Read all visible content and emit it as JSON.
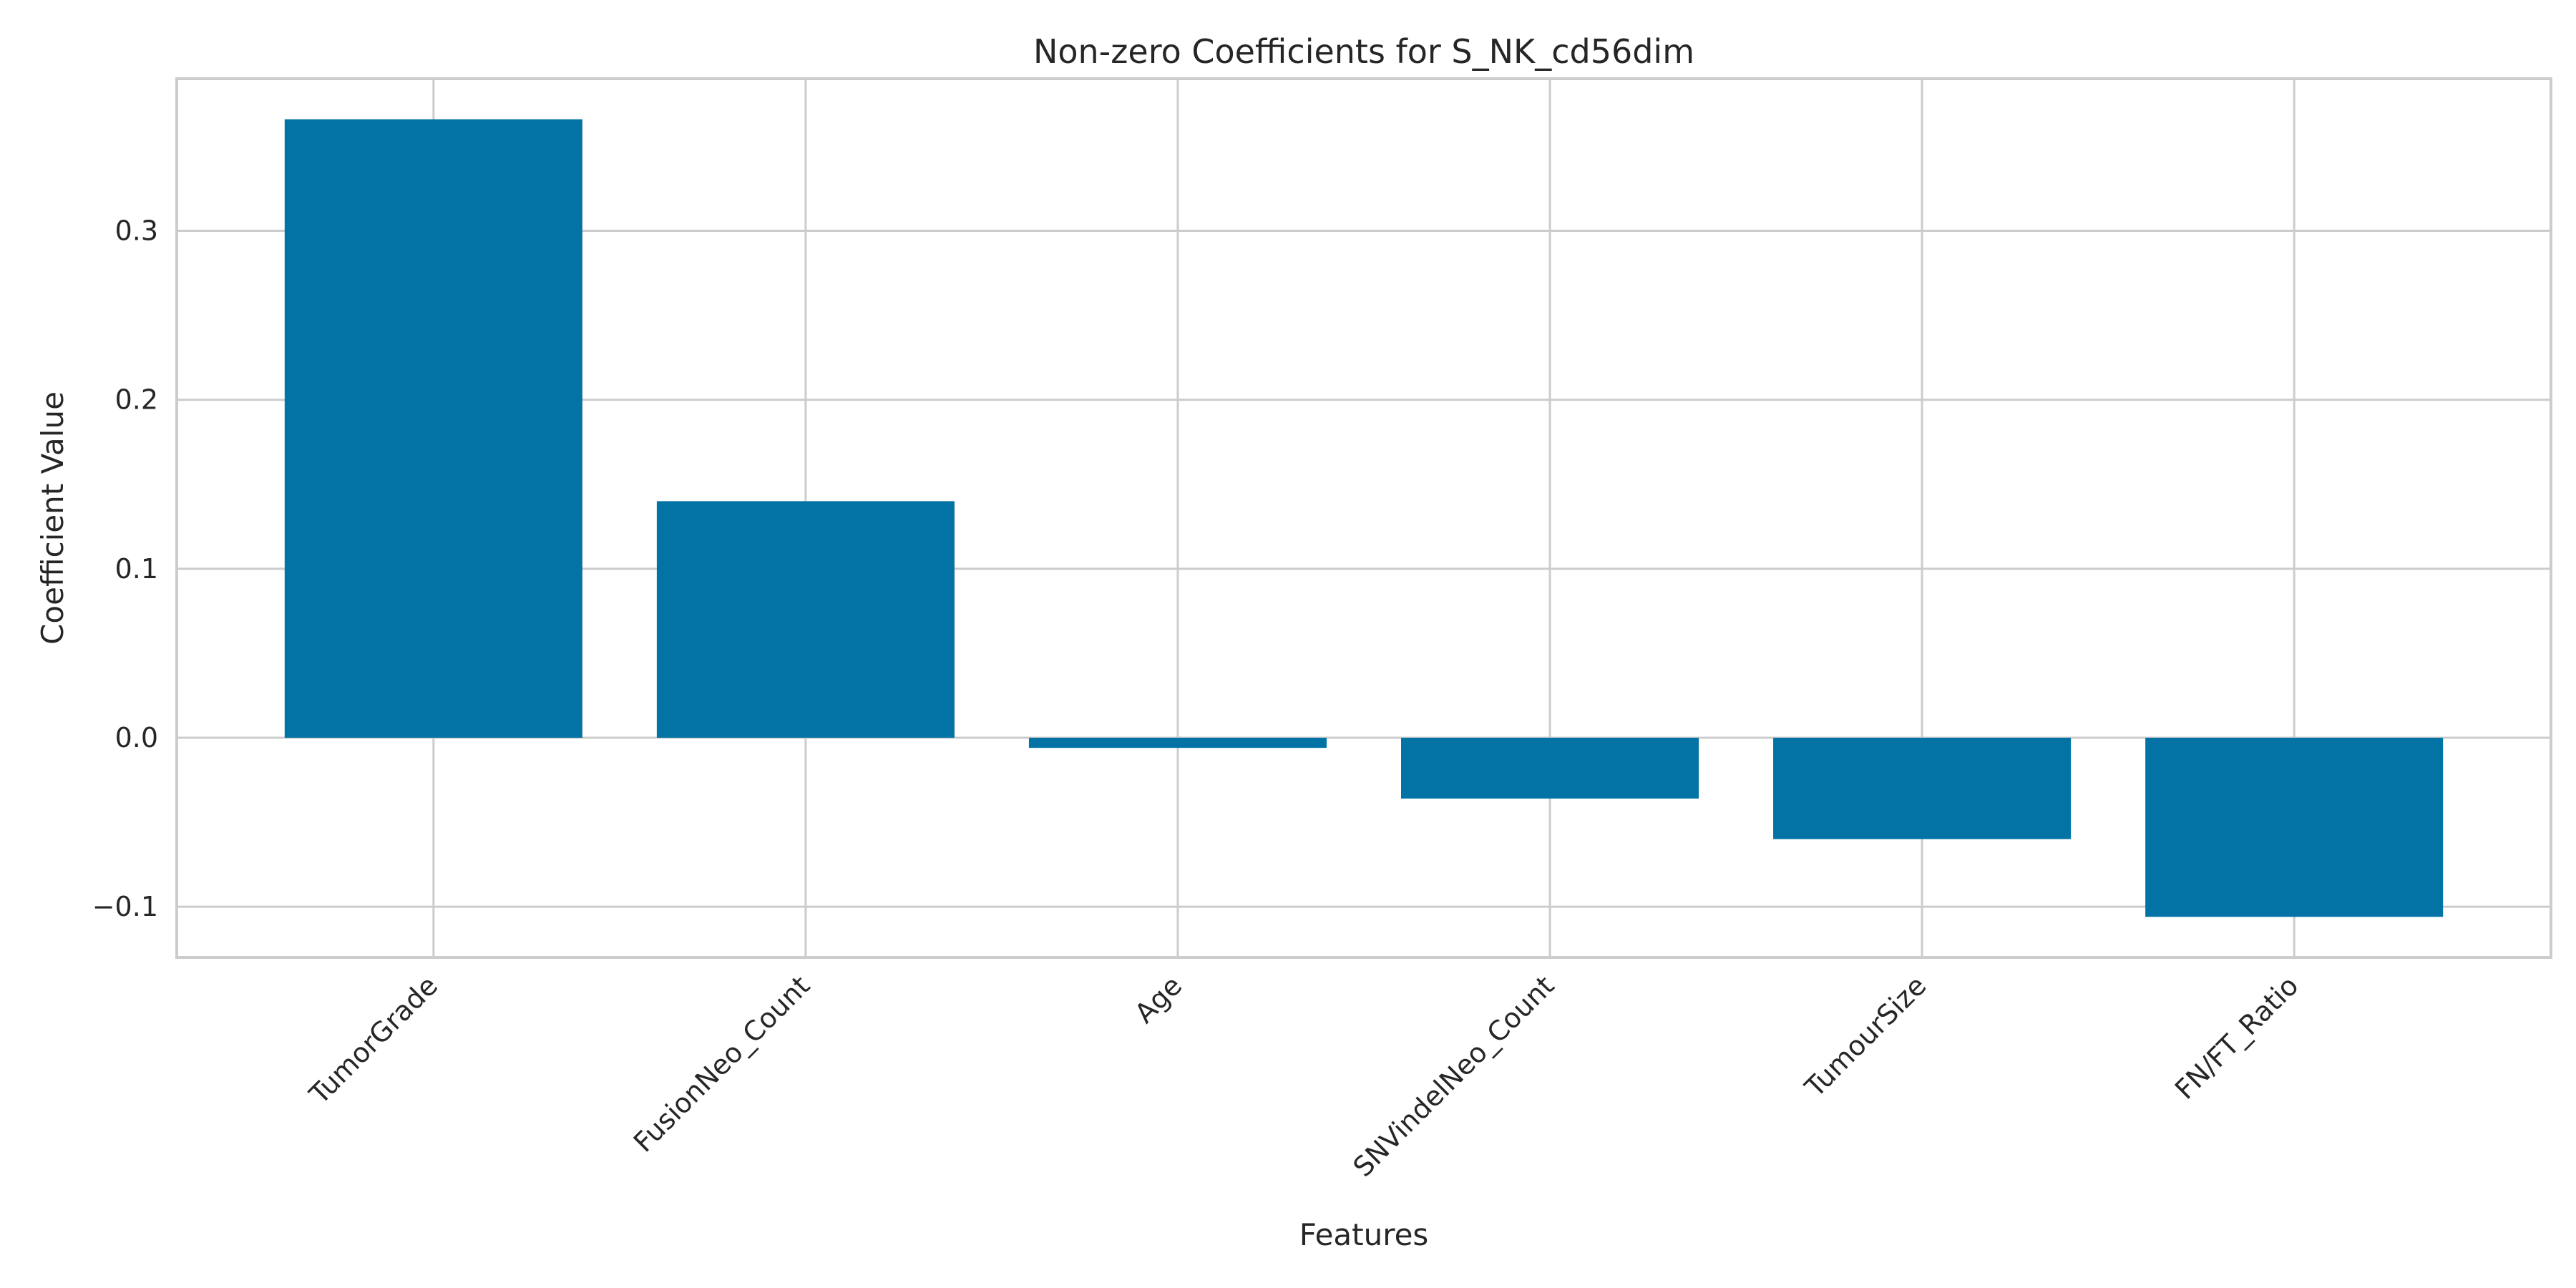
{
  "chart_data": {
    "type": "bar",
    "title": "Non-zero Coefficients for S_NK_cd56dim",
    "xlabel": "Features",
    "ylabel": "Coefficient Value",
    "categories": [
      "TumorGrade",
      "FusionNeo_Count",
      "Age",
      "SNVindelNeo_Count",
      "TumourSize",
      "FN/FT_Ratio"
    ],
    "values": [
      0.366,
      0.14,
      -0.006,
      -0.036,
      -0.06,
      -0.106
    ],
    "ylim": [
      -0.13,
      0.39
    ],
    "yticks": [
      -0.1,
      0.0,
      0.1,
      0.2,
      0.3
    ],
    "ytick_labels": [
      "−0.1",
      "0.0",
      "0.1",
      "0.2",
      "0.3"
    ],
    "grid": true,
    "bar_color": "#0372a5",
    "grid_color": "#cccccc"
  }
}
